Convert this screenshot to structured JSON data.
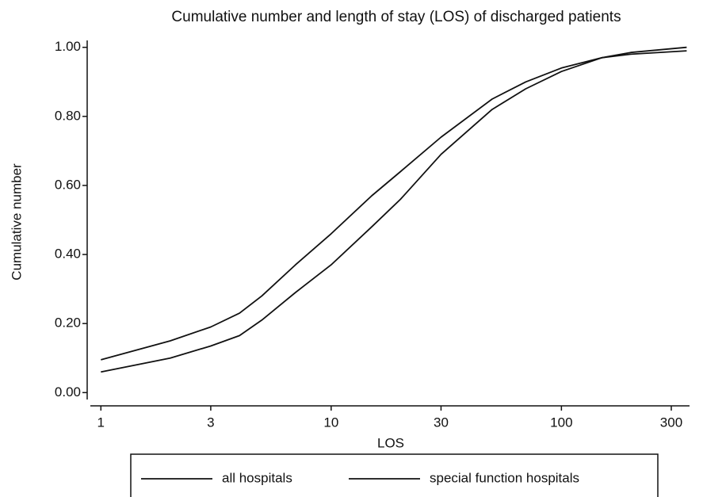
{
  "chart_data": {
    "type": "line",
    "title": "Cumulative number and length of stay (LOS) of discharged patients",
    "x_label": "LOS",
    "y_label": "Cumulative number",
    "x": [
      1,
      2,
      3,
      4,
      5,
      7,
      10,
      15,
      20,
      30,
      50,
      70,
      100,
      150,
      200,
      350
    ],
    "series": [
      {
        "name": "all hospitals",
        "color": "#111111",
        "values": [
          0.095,
          0.15,
          0.19,
          0.23,
          0.28,
          0.37,
          0.46,
          0.57,
          0.64,
          0.74,
          0.85,
          0.9,
          0.94,
          0.97,
          0.98,
          0.99
        ]
      },
      {
        "name": "special function hospitals",
        "color": "#111111",
        "values": [
          0.06,
          0.1,
          0.135,
          0.165,
          0.21,
          0.29,
          0.37,
          0.48,
          0.56,
          0.69,
          0.82,
          0.88,
          0.93,
          0.97,
          0.985,
          1.0
        ]
      }
    ],
    "xscale": "log",
    "xlim": [
      0.9,
      360
    ],
    "xticks": [
      1,
      3,
      10,
      30,
      100,
      300
    ],
    "ylim": [
      -0.02,
      1.02
    ],
    "yticks": [
      {
        "value": 0,
        "label": "0.00"
      },
      {
        "value": 0.2,
        "label": "0.20"
      },
      {
        "value": 0.4,
        "label": "0.40"
      },
      {
        "value": 0.6,
        "label": "0.60"
      },
      {
        "value": 0.8,
        "label": "0.80"
      },
      {
        "value": 1,
        "label": "1.00"
      }
    ],
    "legend": "bottom"
  }
}
